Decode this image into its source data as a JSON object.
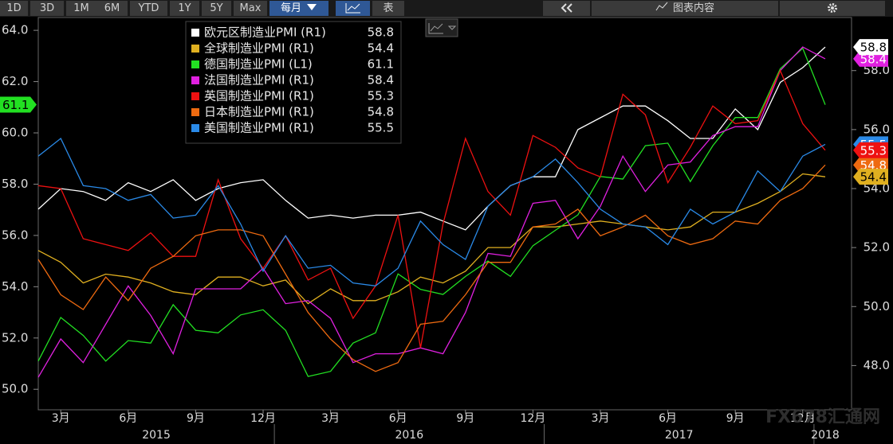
{
  "toolbar": {
    "ranges": [
      "1D",
      "3D",
      "1M",
      "6M",
      "YTD",
      "1Y",
      "5Y",
      "Max"
    ],
    "frequency": "每月",
    "table": "表",
    "content": "图表内容"
  },
  "watermark": "FX678汇通网",
  "chart_data": {
    "type": "line",
    "x": [
      "2015-02",
      "2015-03",
      "2015-04",
      "2015-05",
      "2015-06",
      "2015-07",
      "2015-08",
      "2015-09",
      "2015-10",
      "2015-11",
      "2015-12",
      "2016-01",
      "2016-02",
      "2016-03",
      "2016-04",
      "2016-05",
      "2016-06",
      "2016-07",
      "2016-08",
      "2016-09",
      "2016-10",
      "2016-11",
      "2016-12",
      "2017-01",
      "2017-02",
      "2017-03",
      "2017-04",
      "2017-05",
      "2017-06",
      "2017-07",
      "2017-08",
      "2017-09",
      "2017-10",
      "2017-11",
      "2017-12",
      "2018-01"
    ],
    "xticks": [
      {
        "value": "2015-03",
        "label": "3月"
      },
      {
        "value": "2015-06",
        "label": "6月"
      },
      {
        "value": "2015-09",
        "label": "9月"
      },
      {
        "value": "2015-12",
        "label": "12月"
      },
      {
        "value": "2016-03",
        "label": "3月"
      },
      {
        "value": "2016-06",
        "label": "6月"
      },
      {
        "value": "2016-09",
        "label": "9月"
      },
      {
        "value": "2016-12",
        "label": "12月"
      },
      {
        "value": "2017-03",
        "label": "3月"
      },
      {
        "value": "2017-06",
        "label": "6月"
      },
      {
        "value": "2017-09",
        "label": "9月"
      },
      {
        "value": "2017-12",
        "label": "12月"
      }
    ],
    "years": [
      "2015",
      "2016",
      "2017",
      "2018"
    ],
    "ylim": [
      49.2,
      64.5
    ],
    "yticks": [
      {
        "value": 50,
        "label": "50.0"
      },
      {
        "value": 52,
        "label": "52.0"
      },
      {
        "value": 54,
        "label": "54.0"
      },
      {
        "value": 56,
        "label": "56.0"
      },
      {
        "value": 58,
        "label": "58.0"
      },
      {
        "value": 60,
        "label": "60.0"
      },
      {
        "value": 62,
        "label": "62.0"
      },
      {
        "value": 64,
        "label": "64.0"
      }
    ],
    "y2lim": [
      46.5,
      59.8
    ],
    "y2ticks": [
      {
        "value": 48,
        "label": "48.0"
      },
      {
        "value": 50,
        "label": "50.0"
      },
      {
        "value": 52,
        "label": "52.0"
      },
      {
        "value": 54,
        "label": "54.0"
      },
      {
        "value": 56,
        "label": "56.0"
      },
      {
        "value": 58,
        "label": "58.0"
      }
    ],
    "series": [
      {
        "name": "欧元区制造业PMI (R1)",
        "color": "#ffffff",
        "axis": "y2",
        "values": [
          53.3,
          54.0,
          53.9,
          53.6,
          54.2,
          53.9,
          54.3,
          53.6,
          54.0,
          54.2,
          54.3,
          53.6,
          53.0,
          53.1,
          53.0,
          53.1,
          53.1,
          53.2,
          52.9,
          52.6,
          53.4,
          54.1,
          54.4,
          54.4,
          56.0,
          56.4,
          56.8,
          56.8,
          56.3,
          55.7,
          55.7,
          56.7,
          56.0,
          57.6,
          58.1,
          58.8
        ]
      },
      {
        "name": "全球制造业PMI (R1)",
        "color": "#e0b020",
        "axis": "y2",
        "values": [
          51.9,
          51.5,
          50.8,
          51.1,
          51.0,
          50.8,
          50.5,
          50.4,
          51.0,
          51.0,
          50.7,
          50.9,
          50.1,
          50.6,
          50.2,
          50.2,
          50.5,
          51.0,
          50.8,
          51.2,
          52.0,
          52.0,
          52.7,
          52.7,
          52.8,
          52.9,
          52.8,
          52.7,
          52.6,
          52.7,
          53.2,
          53.2,
          53.5,
          53.9,
          54.5,
          54.4
        ]
      },
      {
        "name": "德国制造业PMI (L1)",
        "color": "#22e022",
        "axis": "y",
        "values": [
          51.1,
          52.8,
          52.1,
          51.1,
          51.9,
          51.8,
          53.3,
          52.3,
          52.2,
          52.9,
          53.1,
          52.3,
          50.5,
          50.7,
          51.8,
          52.2,
          54.5,
          53.9,
          53.7,
          54.4,
          55.0,
          54.4,
          55.6,
          56.2,
          56.8,
          58.3,
          58.2,
          59.5,
          59.6,
          58.1,
          59.5,
          60.6,
          60.6,
          62.5,
          63.3,
          61.1
        ]
      },
      {
        "name": "法国制造业PMI (R1)",
        "color": "#e020e0",
        "axis": "y2",
        "values": [
          47.6,
          48.9,
          48.1,
          49.4,
          50.7,
          49.7,
          48.4,
          50.6,
          50.6,
          50.6,
          51.3,
          50.1,
          50.2,
          49.6,
          48.1,
          48.4,
          48.4,
          48.6,
          48.4,
          49.8,
          51.8,
          51.7,
          53.5,
          53.6,
          52.3,
          53.4,
          55.1,
          53.9,
          54.8,
          54.9,
          55.8,
          56.1,
          56.1,
          58.0,
          58.8,
          58.4
        ]
      },
      {
        "name": "英国制造业PMI (R1)",
        "color": "#ee1111",
        "axis": "y2",
        "values": [
          54.1,
          54.0,
          52.3,
          52.1,
          51.9,
          52.5,
          51.7,
          51.7,
          54.3,
          52.3,
          51.3,
          52.4,
          50.9,
          51.3,
          49.6,
          50.7,
          53.1,
          48.6,
          52.8,
          55.7,
          53.9,
          53.1,
          55.8,
          55.4,
          54.7,
          54.4,
          57.2,
          56.5,
          54.2,
          55.4,
          56.8,
          56.2,
          56.3,
          58.0,
          56.2,
          55.3
        ]
      },
      {
        "name": "日本制造业PMI (R1)",
        "color": "#ee6a10",
        "axis": "y2",
        "values": [
          51.6,
          50.4,
          49.9,
          51.0,
          50.2,
          51.3,
          51.7,
          52.4,
          52.6,
          52.6,
          52.4,
          51.1,
          49.8,
          48.9,
          48.2,
          47.8,
          48.1,
          49.4,
          49.5,
          50.4,
          51.5,
          51.5,
          52.7,
          52.8,
          53.3,
          52.4,
          52.7,
          53.1,
          52.4,
          52.1,
          52.3,
          52.9,
          52.8,
          53.6,
          54.0,
          54.8
        ]
      },
      {
        "name": "美国制造业PMI (R1)",
        "color": "#2a8ae8",
        "axis": "y2",
        "values": [
          55.1,
          55.7,
          54.1,
          54.0,
          53.6,
          53.8,
          53.0,
          53.1,
          54.1,
          52.8,
          51.2,
          52.4,
          51.3,
          51.4,
          50.8,
          50.7,
          51.3,
          52.9,
          52.1,
          51.6,
          53.4,
          54.1,
          54.4,
          55.0,
          54.2,
          53.3,
          52.8,
          52.7,
          52.1,
          53.3,
          52.8,
          53.2,
          54.6,
          53.9,
          55.1,
          55.5
        ]
      }
    ]
  }
}
